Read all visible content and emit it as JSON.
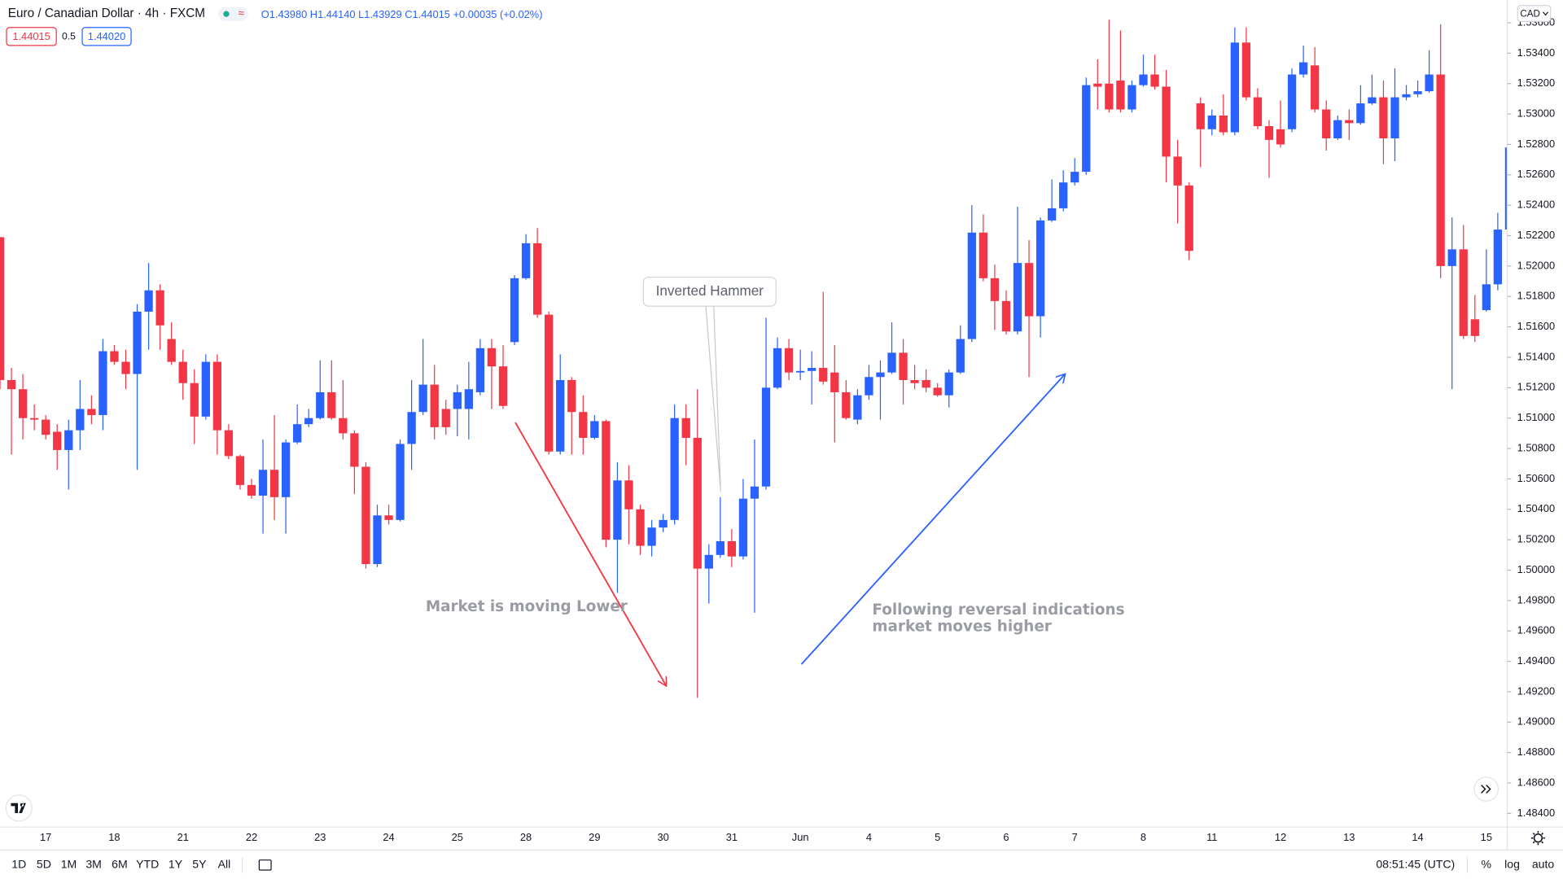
{
  "header": {
    "symbol": "Euro / Canadian Dollar · 4h · FXCM",
    "ohlc": "O1.43980 H1.44140 L1.43929 C1.44015 +0.00035 (+0.02%)",
    "bid": "1.44015",
    "spread": "0.5",
    "ask": "1.44020",
    "currency": "CAD"
  },
  "toolbar": {
    "ranges": [
      "1D",
      "5D",
      "1M",
      "3M",
      "6M",
      "YTD",
      "1Y",
      "5Y",
      "All"
    ],
    "time": "08:51:45 (UTC)",
    "options": [
      "%",
      "log",
      "auto"
    ]
  },
  "annotations": {
    "callout": "Inverted Hammer",
    "down": "Market is moving Lower",
    "up": [
      "Following reversal indications",
      "market moves higher"
    ]
  },
  "chart_data": {
    "type": "candlestick",
    "up_color": "#2962ff",
    "down_color": "#f23645",
    "grid": false,
    "ylim": [
      1.4831,
      1.5375
    ],
    "yticks": [
      {
        "value": 1.484,
        "label": "1.48400"
      },
      {
        "value": 1.486,
        "label": "1.48600"
      },
      {
        "value": 1.488,
        "label": "1.48800"
      },
      {
        "value": 1.49,
        "label": "1.49000"
      },
      {
        "value": 1.492,
        "label": "1.49200"
      },
      {
        "value": 1.494,
        "label": "1.49400"
      },
      {
        "value": 1.496,
        "label": "1.49600"
      },
      {
        "value": 1.498,
        "label": "1.49800"
      },
      {
        "value": 1.5,
        "label": "1.50000"
      },
      {
        "value": 1.502,
        "label": "1.50200"
      },
      {
        "value": 1.504,
        "label": "1.50400"
      },
      {
        "value": 1.506,
        "label": "1.50600"
      },
      {
        "value": 1.508,
        "label": "1.50800"
      },
      {
        "value": 1.51,
        "label": "1.51000"
      },
      {
        "value": 1.512,
        "label": "1.51200"
      },
      {
        "value": 1.514,
        "label": "1.51400"
      },
      {
        "value": 1.516,
        "label": "1.51600"
      },
      {
        "value": 1.518,
        "label": "1.51800"
      },
      {
        "value": 1.52,
        "label": "1.52000"
      },
      {
        "value": 1.522,
        "label": "1.52200"
      },
      {
        "value": 1.524,
        "label": "1.52400"
      },
      {
        "value": 1.526,
        "label": "1.52600"
      },
      {
        "value": 1.528,
        "label": "1.52800"
      },
      {
        "value": 1.53,
        "label": "1.53000"
      },
      {
        "value": 1.532,
        "label": "1.53200"
      },
      {
        "value": 1.534,
        "label": "1.53400"
      },
      {
        "value": 1.536,
        "label": "1.53600"
      }
    ],
    "categories": [
      null,
      null,
      null,
      null,
      "17",
      null,
      null,
      null,
      null,
      null,
      "18",
      null,
      null,
      null,
      null,
      null,
      "21",
      null,
      null,
      null,
      null,
      null,
      "22",
      null,
      null,
      null,
      null,
      null,
      "23",
      null,
      null,
      null,
      null,
      null,
      "24",
      null,
      null,
      null,
      null,
      null,
      "25",
      null,
      null,
      null,
      null,
      null,
      "28",
      null,
      null,
      null,
      null,
      null,
      "29",
      null,
      null,
      null,
      null,
      null,
      "30",
      null,
      null,
      null,
      null,
      null,
      "31",
      null,
      null,
      null,
      null,
      null,
      "Jun",
      null,
      null,
      null,
      null,
      null,
      "4",
      null,
      null,
      null,
      null,
      null,
      "5",
      null,
      null,
      null,
      null,
      null,
      "6",
      null,
      null,
      null,
      null,
      null,
      "7",
      null,
      null,
      null,
      null,
      null,
      "8",
      null,
      null,
      null,
      null,
      null,
      "11",
      null,
      null,
      null,
      null,
      null,
      "12",
      null,
      null,
      null,
      null,
      null,
      "13",
      null,
      null,
      null,
      null,
      null,
      "14",
      null,
      null,
      null,
      null,
      null,
      "15",
      null,
      null
    ],
    "open": [
      1.5219,
      1.5125,
      1.5119,
      1.51,
      1.5099,
      1.5091,
      1.5079,
      1.5092,
      1.5106,
      1.5102,
      1.5144,
      1.5137,
      1.5129,
      1.517,
      1.5184,
      1.5152,
      1.5137,
      1.5123,
      1.5101,
      1.5137,
      1.5092,
      1.5075,
      1.5056,
      1.5049,
      1.5066,
      1.5048,
      1.5084,
      1.5096,
      1.51,
      1.5117,
      1.51,
      1.509,
      1.5068,
      1.5004,
      1.5036,
      1.5033,
      1.5083,
      1.5104,
      1.5122,
      1.5106,
      1.5106,
      1.5106,
      1.5117,
      1.5146,
      1.5134,
      1.515,
      1.5192,
      1.5215,
      1.5168,
      1.5078,
      1.5125,
      1.5104,
      1.5087,
      1.5098,
      1.502,
      1.5059,
      1.504,
      1.5016,
      1.5028,
      1.5033,
      1.51,
      1.5087,
      1.5001,
      1.501,
      1.5019,
      1.5009,
      1.5047,
      1.5055,
      1.512,
      1.5146,
      1.513,
      1.5131,
      1.5133,
      1.513,
      1.5117,
      1.5099,
      1.5115,
      1.5127,
      1.513,
      1.5143,
      1.5125,
      1.5125,
      1.512,
      1.5115,
      1.513,
      1.5152,
      1.5222,
      1.5192,
      1.5177,
      1.5157,
      1.5202,
      1.5167,
      1.523,
      1.5238,
      1.5255,
      1.5262,
      1.532,
      1.532,
      1.5322,
      1.5303,
      1.5319,
      1.5326,
      1.5318,
      1.5272,
      1.5253,
      1.5307,
      1.529,
      1.5299,
      1.5288,
      1.5347,
      1.5311,
      1.5292,
      1.529,
      1.529,
      1.5326,
      1.5332,
      1.5303,
      1.5284,
      1.5296,
      1.5294,
      1.5307,
      1.5311,
      1.5284,
      1.5311,
      1.5313,
      1.5315,
      1.5326,
      1.52,
      1.5211,
      1.5165,
      1.5171,
      1.5188,
      1.5224
    ],
    "high": [
      1.5219,
      1.5133,
      1.5129,
      1.5109,
      1.5102,
      1.5096,
      1.5099,
      1.5125,
      1.5115,
      1.5152,
      1.5148,
      1.5145,
      1.5175,
      1.5202,
      1.5188,
      1.5163,
      1.5145,
      1.5132,
      1.5142,
      1.5142,
      1.5096,
      1.5076,
      1.506,
      1.5086,
      1.5102,
      1.5086,
      1.5109,
      1.5106,
      1.5138,
      1.5138,
      1.5125,
      1.5092,
      1.5071,
      1.5043,
      1.5043,
      1.5086,
      1.5125,
      1.5152,
      1.5135,
      1.5112,
      1.5122,
      1.5137,
      1.5152,
      1.5152,
      1.5148,
      1.5194,
      1.5221,
      1.5225,
      1.517,
      1.5142,
      1.5127,
      1.5115,
      1.5102,
      1.5099,
      1.5071,
      1.5069,
      1.5043,
      1.5033,
      1.5037,
      1.5109,
      1.5109,
      1.5119,
      1.5017,
      1.5048,
      1.5027,
      1.506,
      1.5086,
      1.5166,
      1.5153,
      1.5152,
      1.5145,
      1.5144,
      1.5183,
      1.5148,
      1.5125,
      1.5119,
      1.5135,
      1.5138,
      1.5163,
      1.5152,
      1.5135,
      1.5132,
      1.5123,
      1.5132,
      1.5161,
      1.524,
      1.5234,
      1.5201,
      1.5184,
      1.5239,
      1.5217,
      1.5232,
      1.5257,
      1.5263,
      1.5271,
      1.5324,
      1.5336,
      1.5362,
      1.5355,
      1.5322,
      1.5339,
      1.5339,
      1.5329,
      1.5283,
      1.5255,
      1.5311,
      1.5303,
      1.5313,
      1.5357,
      1.5357,
      1.5317,
      1.5296,
      1.5309,
      1.533,
      1.5345,
      1.5344,
      1.5309,
      1.5299,
      1.5303,
      1.5319,
      1.5326,
      1.5322,
      1.533,
      1.5319,
      1.5322,
      1.5342,
      1.5359,
      1.5232,
      1.5227,
      1.5181,
      1.5211,
      1.5235,
      1.5283
    ],
    "low": [
      1.5119,
      1.5076,
      1.5086,
      1.5092,
      1.5086,
      1.5066,
      1.5053,
      1.5079,
      1.5096,
      1.5092,
      1.5135,
      1.5119,
      1.5066,
      1.5145,
      1.5145,
      1.5135,
      1.5112,
      1.5083,
      1.5099,
      1.5076,
      1.5073,
      1.5053,
      1.5047,
      1.5024,
      1.5033,
      1.5024,
      1.5083,
      1.5094,
      1.5099,
      1.5099,
      1.5086,
      1.505,
      1.5001,
      1.5002,
      1.503,
      1.5032,
      1.5066,
      1.5102,
      1.5086,
      1.5089,
      1.5088,
      1.5086,
      1.5115,
      1.5106,
      1.5106,
      1.5148,
      1.5191,
      1.5166,
      1.5076,
      1.5076,
      1.5076,
      1.5076,
      1.5086,
      1.5015,
      1.4985,
      1.5017,
      1.501,
      1.5009,
      1.5025,
      1.503,
      1.5069,
      1.4916,
      1.4978,
      1.5008,
      1.5002,
      1.5007,
      1.4972,
      1.5053,
      1.5119,
      1.5125,
      1.5125,
      1.5109,
      1.5122,
      1.5084,
      1.5099,
      1.5096,
      1.5112,
      1.5099,
      1.5129,
      1.5109,
      1.5119,
      1.5117,
      1.5114,
      1.5107,
      1.5129,
      1.515,
      1.519,
      1.5158,
      1.5155,
      1.5155,
      1.5127,
      1.5153,
      1.5229,
      1.5236,
      1.5253,
      1.526,
      1.5303,
      1.5301,
      1.5301,
      1.5301,
      1.5318,
      1.5316,
      1.5255,
      1.5228,
      1.5204,
      1.5265,
      1.5286,
      1.5286,
      1.5286,
      1.5309,
      1.529,
      1.5258,
      1.5278,
      1.5288,
      1.5324,
      1.5301,
      1.5276,
      1.5283,
      1.5283,
      1.5293,
      1.5306,
      1.5267,
      1.5269,
      1.5309,
      1.5311,
      1.5314,
      1.5192,
      1.5119,
      1.5152,
      1.515,
      1.517,
      1.5184,
      1.5211
    ],
    "close": [
      1.5125,
      1.5119,
      1.51,
      1.5099,
      1.5089,
      1.5079,
      1.5092,
      1.5106,
      1.5102,
      1.5144,
      1.5137,
      1.5129,
      1.517,
      1.5184,
      1.5161,
      1.5137,
      1.5123,
      1.5101,
      1.5137,
      1.5092,
      1.5075,
      1.5056,
      1.5049,
      1.5066,
      1.5048,
      1.5084,
      1.5096,
      1.51,
      1.5117,
      1.51,
      1.509,
      1.5068,
      1.5004,
      1.5036,
      1.5033,
      1.5083,
      1.5104,
      1.5122,
      1.5094,
      1.5094,
      1.5117,
      1.5119,
      1.5146,
      1.5134,
      1.5108,
      1.5192,
      1.5215,
      1.5168,
      1.5078,
      1.5125,
      1.5104,
      1.5087,
      1.5098,
      1.502,
      1.5059,
      1.504,
      1.5016,
      1.5028,
      1.5033,
      1.51,
      1.5087,
      1.5001,
      1.501,
      1.5019,
      1.5009,
      1.5047,
      1.5055,
      1.512,
      1.5146,
      1.513,
      1.5131,
      1.5133,
      1.5124,
      1.5117,
      1.51,
      1.5115,
      1.5127,
      1.513,
      1.5143,
      1.5125,
      1.5123,
      1.512,
      1.5115,
      1.513,
      1.5152,
      1.5222,
      1.5192,
      1.5177,
      1.5157,
      1.5202,
      1.5167,
      1.523,
      1.5238,
      1.5255,
      1.5262,
      1.5319,
      1.5318,
      1.5303,
      1.5303,
      1.5319,
      1.5326,
      1.5318,
      1.5272,
      1.5253,
      1.521,
      1.529,
      1.5299,
      1.5288,
      1.5347,
      1.5311,
      1.5292,
      1.5283,
      1.528,
      1.5326,
      1.5334,
      1.5303,
      1.5284,
      1.5296,
      1.5294,
      1.5307,
      1.5311,
      1.5284,
      1.5311,
      1.5313,
      1.5315,
      1.5326,
      1.52,
      1.5211,
      1.5154,
      1.5154,
      1.5188,
      1.5224,
      1.5278
    ]
  }
}
